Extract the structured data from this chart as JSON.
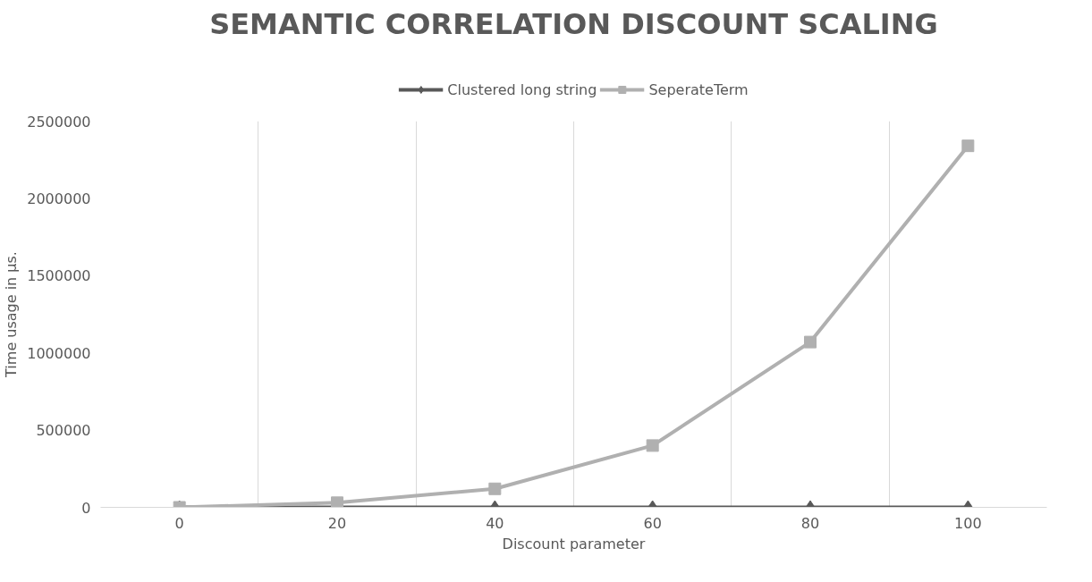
{
  "chart_data": {
    "type": "line",
    "title": "SEMANTIC CORRELATION DISCOUNT SCALING",
    "xlabel": "Discount parameter",
    "ylabel": "Time usage in µs.",
    "categories": [
      "0",
      "20",
      "40",
      "60",
      "80",
      "100"
    ],
    "series": [
      {
        "name": "Clustered long string",
        "color": "#595959",
        "marker": "diamond",
        "values": [
          0,
          0,
          0,
          0,
          0,
          0
        ]
      },
      {
        "name": "SeperateTerm",
        "color": "#b0b0b0",
        "marker": "square",
        "values": [
          0,
          30000,
          120000,
          400000,
          1070000,
          2340000
        ]
      }
    ],
    "ylim": [
      0,
      2500000
    ],
    "yticks": [
      0,
      500000,
      1000000,
      1500000,
      2000000,
      2500000
    ],
    "grid": "x",
    "legend": "top",
    "line_style": "solid"
  }
}
